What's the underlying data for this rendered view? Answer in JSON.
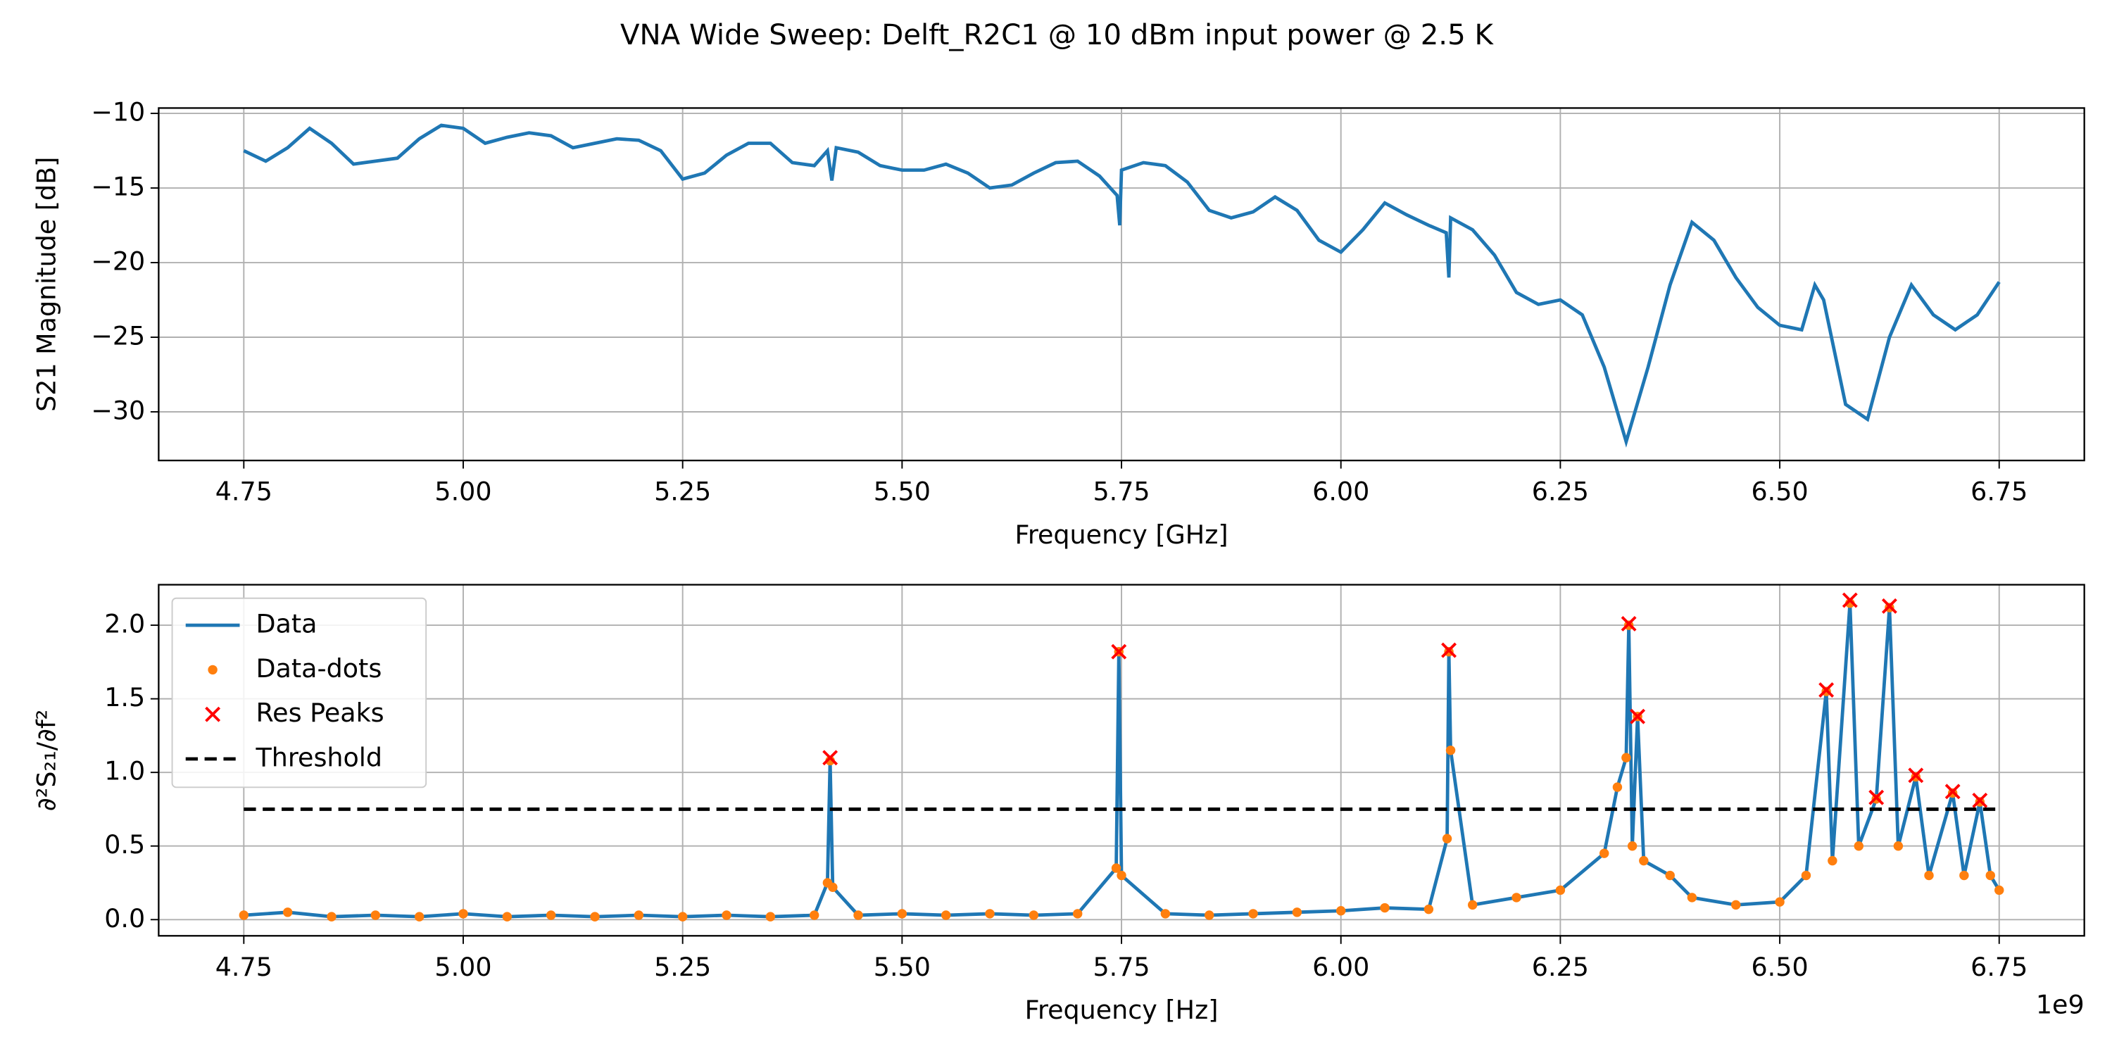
{
  "chart_data": [
    {
      "type": "line",
      "title": "VNA Wide Sweep: Delft_R2C1 @ 10 dBm input power @ 2.5 K",
      "xlabel": "Frequency [GHz]",
      "ylabel": "S21 Magnitude [dB]",
      "grid": true,
      "xlim": [
        4.653,
        6.847
      ],
      "ylim": [
        -33.26,
        -9.64
      ],
      "xticks": [
        4.75,
        {
          "value": 5.0,
          "label": "5.00"
        },
        5.25,
        {
          "value": 5.5,
          "label": "5.50"
        },
        5.75,
        {
          "value": 6.0,
          "label": "6.00"
        },
        6.25,
        {
          "value": 6.5,
          "label": "6.50"
        },
        6.75
      ],
      "yticks": [
        {
          "value": -30,
          "label": "−30"
        },
        {
          "value": -25,
          "label": "−25"
        },
        {
          "value": -20,
          "label": "−20"
        },
        {
          "value": -15,
          "label": "−15"
        },
        {
          "value": -10,
          "label": "−10"
        }
      ],
      "series": [
        {
          "color": "#1f77b4",
          "linestyle": "solid",
          "x": [
            4.75,
            4.775,
            4.8,
            4.825,
            4.85,
            4.875,
            4.9,
            4.925,
            4.95,
            4.975,
            5.0,
            5.025,
            5.05,
            5.075,
            5.1,
            5.125,
            5.15,
            5.175,
            5.2,
            5.225,
            5.25,
            5.275,
            5.3,
            5.325,
            5.35,
            5.375,
            5.4,
            5.415,
            5.42,
            5.425,
            5.45,
            5.475,
            5.5,
            5.525,
            5.55,
            5.575,
            5.6,
            5.625,
            5.65,
            5.675,
            5.7,
            5.725,
            5.745,
            5.748,
            5.75,
            5.775,
            5.8,
            5.825,
            5.85,
            5.875,
            5.9,
            5.925,
            5.95,
            5.975,
            6.0,
            6.025,
            6.05,
            6.075,
            6.1,
            6.12,
            6.123,
            6.125,
            6.15,
            6.175,
            6.2,
            6.225,
            6.25,
            6.275,
            6.3,
            6.325,
            6.35,
            6.375,
            6.4,
            6.425,
            6.45,
            6.475,
            6.5,
            6.525,
            6.54,
            6.55,
            6.575,
            6.6,
            6.625,
            6.65,
            6.675,
            6.7,
            6.725,
            6.75
          ],
          "values": [
            -12.5,
            -13.2,
            -12.3,
            -11.0,
            -12.0,
            -13.4,
            -13.2,
            -13.0,
            -11.7,
            -10.8,
            -11.0,
            -12.0,
            -11.6,
            -11.3,
            -11.5,
            -12.3,
            -12.0,
            -11.7,
            -11.8,
            -12.5,
            -14.4,
            -14.0,
            -12.8,
            -12.0,
            -12.0,
            -13.3,
            -13.5,
            -12.5,
            -14.5,
            -12.3,
            -12.6,
            -13.5,
            -13.8,
            -13.8,
            -13.4,
            -14.0,
            -15.0,
            -14.8,
            -14.0,
            -13.3,
            -13.2,
            -14.2,
            -15.5,
            -17.5,
            -13.8,
            -13.3,
            -13.5,
            -14.6,
            -16.5,
            -17.0,
            -16.6,
            -15.6,
            -16.5,
            -18.5,
            -19.3,
            -17.8,
            -16.0,
            -16.8,
            -17.5,
            -18.0,
            -21.0,
            -17.0,
            -17.8,
            -19.5,
            -22.0,
            -22.8,
            -22.5,
            -23.5,
            -27.0,
            -32.0,
            -27.0,
            -21.5,
            -17.3,
            -18.5,
            -21.0,
            -23.0,
            -24.2,
            -24.5,
            -21.5,
            -22.5,
            -29.5,
            -30.5,
            -25.0,
            -21.5,
            -23.5,
            -24.5,
            -23.5,
            -21.3
          ]
        }
      ]
    },
    {
      "type": "line",
      "xlabel": "Frequency [Hz]",
      "ylabel": "∂²S₂₁/∂f²",
      "x_offset_label": "1e9",
      "grid": true,
      "legend": "upper left",
      "xlim": [
        4653000000,
        6847000000
      ],
      "ylim": [
        -0.11,
        2.275
      ],
      "xticks": [
        {
          "value": 4750000000,
          "label": "4.75"
        },
        {
          "value": 5000000000,
          "label": "5.00"
        },
        {
          "value": 5250000000,
          "label": "5.25"
        },
        {
          "value": 5500000000,
          "label": "5.50"
        },
        {
          "value": 5750000000,
          "label": "5.75"
        },
        {
          "value": 6000000000,
          "label": "6.00"
        },
        {
          "value": 6250000000,
          "label": "6.25"
        },
        {
          "value": 6500000000,
          "label": "6.50"
        },
        {
          "value": 6750000000,
          "label": "6.75"
        }
      ],
      "yticks": [
        {
          "value": 0,
          "label": "0.0"
        },
        0.5,
        {
          "value": 1,
          "label": "1.0"
        },
        1.5,
        {
          "value": 2,
          "label": "2.0"
        }
      ],
      "series": [
        {
          "name": "Data",
          "color": "#1f77b4",
          "linestyle": "solid",
          "x": [
            4750000000.0,
            4800000000.0,
            4850000000.0,
            4900000000.0,
            4950000000.0,
            5000000000.0,
            5050000000.0,
            5100000000.0,
            5150000000.0,
            5200000000.0,
            5250000000.0,
            5300000000.0,
            5350000000.0,
            5400000000.0,
            5415000000.0,
            5418000000.0,
            5421000000.0,
            5450000000.0,
            5500000000.0,
            5550000000.0,
            5600000000.0,
            5650000000.0,
            5700000000.0,
            5744000000.0,
            5747000000.0,
            5750000000.0,
            5800000000.0,
            5850000000.0,
            5900000000.0,
            5950000000.0,
            6000000000.0,
            6050000000.0,
            6100000000.0,
            6121000000.0,
            6123000000.0,
            6125000000.0,
            6150000000.0,
            6200000000.0,
            6250000000.0,
            6300000000.0,
            6315000000.0,
            6325000000.0,
            6328000000.0,
            6332000000.0,
            6338000000.0,
            6345000000.0,
            6375000000.0,
            6400000000.0,
            6450000000.0,
            6500000000.0,
            6530000000.0,
            6553000000.0,
            6560000000.0,
            6580000000.0,
            6590000000.0,
            6610000000.0,
            6625000000.0,
            6635000000.0,
            6655000000.0,
            6670000000.0,
            6697000000.0,
            6710000000.0,
            6728000000.0,
            6740000000.0,
            6750000000.0
          ],
          "values": [
            0.03,
            0.05,
            0.02,
            0.03,
            0.02,
            0.04,
            0.02,
            0.03,
            0.02,
            0.03,
            0.02,
            0.03,
            0.02,
            0.03,
            0.25,
            1.08,
            0.22,
            0.03,
            0.04,
            0.03,
            0.04,
            0.03,
            0.04,
            0.35,
            1.82,
            0.3,
            0.04,
            0.03,
            0.04,
            0.05,
            0.06,
            0.08,
            0.07,
            0.55,
            1.82,
            1.15,
            0.1,
            0.15,
            0.2,
            0.45,
            0.9,
            1.1,
            2.0,
            0.5,
            1.38,
            0.4,
            0.3,
            0.15,
            0.1,
            0.12,
            0.3,
            1.55,
            0.4,
            2.15,
            0.5,
            0.82,
            2.12,
            0.5,
            0.97,
            0.3,
            0.86,
            0.3,
            0.8,
            0.3,
            0.2
          ]
        },
        {
          "name": "Data-dots",
          "color": "#ff7f0e",
          "linestyle": "none",
          "marker": "dot",
          "x": [
            4750000000.0,
            4800000000.0,
            4850000000.0,
            4900000000.0,
            4950000000.0,
            5000000000.0,
            5050000000.0,
            5100000000.0,
            5150000000.0,
            5200000000.0,
            5250000000.0,
            5300000000.0,
            5350000000.0,
            5400000000.0,
            5415000000.0,
            5418000000.0,
            5421000000.0,
            5450000000.0,
            5500000000.0,
            5550000000.0,
            5600000000.0,
            5650000000.0,
            5700000000.0,
            5744000000.0,
            5747000000.0,
            5750000000.0,
            5800000000.0,
            5850000000.0,
            5900000000.0,
            5950000000.0,
            6000000000.0,
            6050000000.0,
            6100000000.0,
            6121000000.0,
            6123000000.0,
            6125000000.0,
            6150000000.0,
            6200000000.0,
            6250000000.0,
            6300000000.0,
            6315000000.0,
            6325000000.0,
            6328000000.0,
            6332000000.0,
            6338000000.0,
            6345000000.0,
            6375000000.0,
            6400000000.0,
            6450000000.0,
            6500000000.0,
            6530000000.0,
            6553000000.0,
            6560000000.0,
            6580000000.0,
            6590000000.0,
            6610000000.0,
            6625000000.0,
            6635000000.0,
            6655000000.0,
            6670000000.0,
            6697000000.0,
            6710000000.0,
            6728000000.0,
            6740000000.0,
            6750000000.0
          ],
          "values": [
            0.03,
            0.05,
            0.02,
            0.03,
            0.02,
            0.04,
            0.02,
            0.03,
            0.02,
            0.03,
            0.02,
            0.03,
            0.02,
            0.03,
            0.25,
            1.08,
            0.22,
            0.03,
            0.04,
            0.03,
            0.04,
            0.03,
            0.04,
            0.35,
            1.82,
            0.3,
            0.04,
            0.03,
            0.04,
            0.05,
            0.06,
            0.08,
            0.07,
            0.55,
            1.82,
            1.15,
            0.1,
            0.15,
            0.2,
            0.45,
            0.9,
            1.1,
            2.0,
            0.5,
            1.38,
            0.4,
            0.3,
            0.15,
            0.1,
            0.12,
            0.3,
            1.55,
            0.4,
            2.15,
            0.5,
            0.82,
            2.12,
            0.5,
            0.97,
            0.3,
            0.86,
            0.3,
            0.8,
            0.3,
            0.2
          ]
        },
        {
          "name": "Res Peaks",
          "color": "#ff0000",
          "linestyle": "none",
          "marker": "x",
          "x": [
            5418000000.0,
            5747000000.0,
            6123000000.0,
            6328000000.0,
            6338000000.0,
            6553000000.0,
            6580000000.0,
            6610000000.0,
            6625000000.0,
            6655000000.0,
            6697000000.0,
            6728000000.0
          ],
          "values": [
            1.1,
            1.82,
            1.83,
            2.01,
            1.38,
            1.56,
            2.17,
            0.83,
            2.13,
            0.98,
            0.87,
            0.81
          ]
        },
        {
          "name": "Threshold",
          "color": "#000000",
          "linestyle": "dashed",
          "x": [
            4750000000.0,
            6750000000.0
          ],
          "values": [
            0.75,
            0.75
          ]
        }
      ]
    }
  ]
}
